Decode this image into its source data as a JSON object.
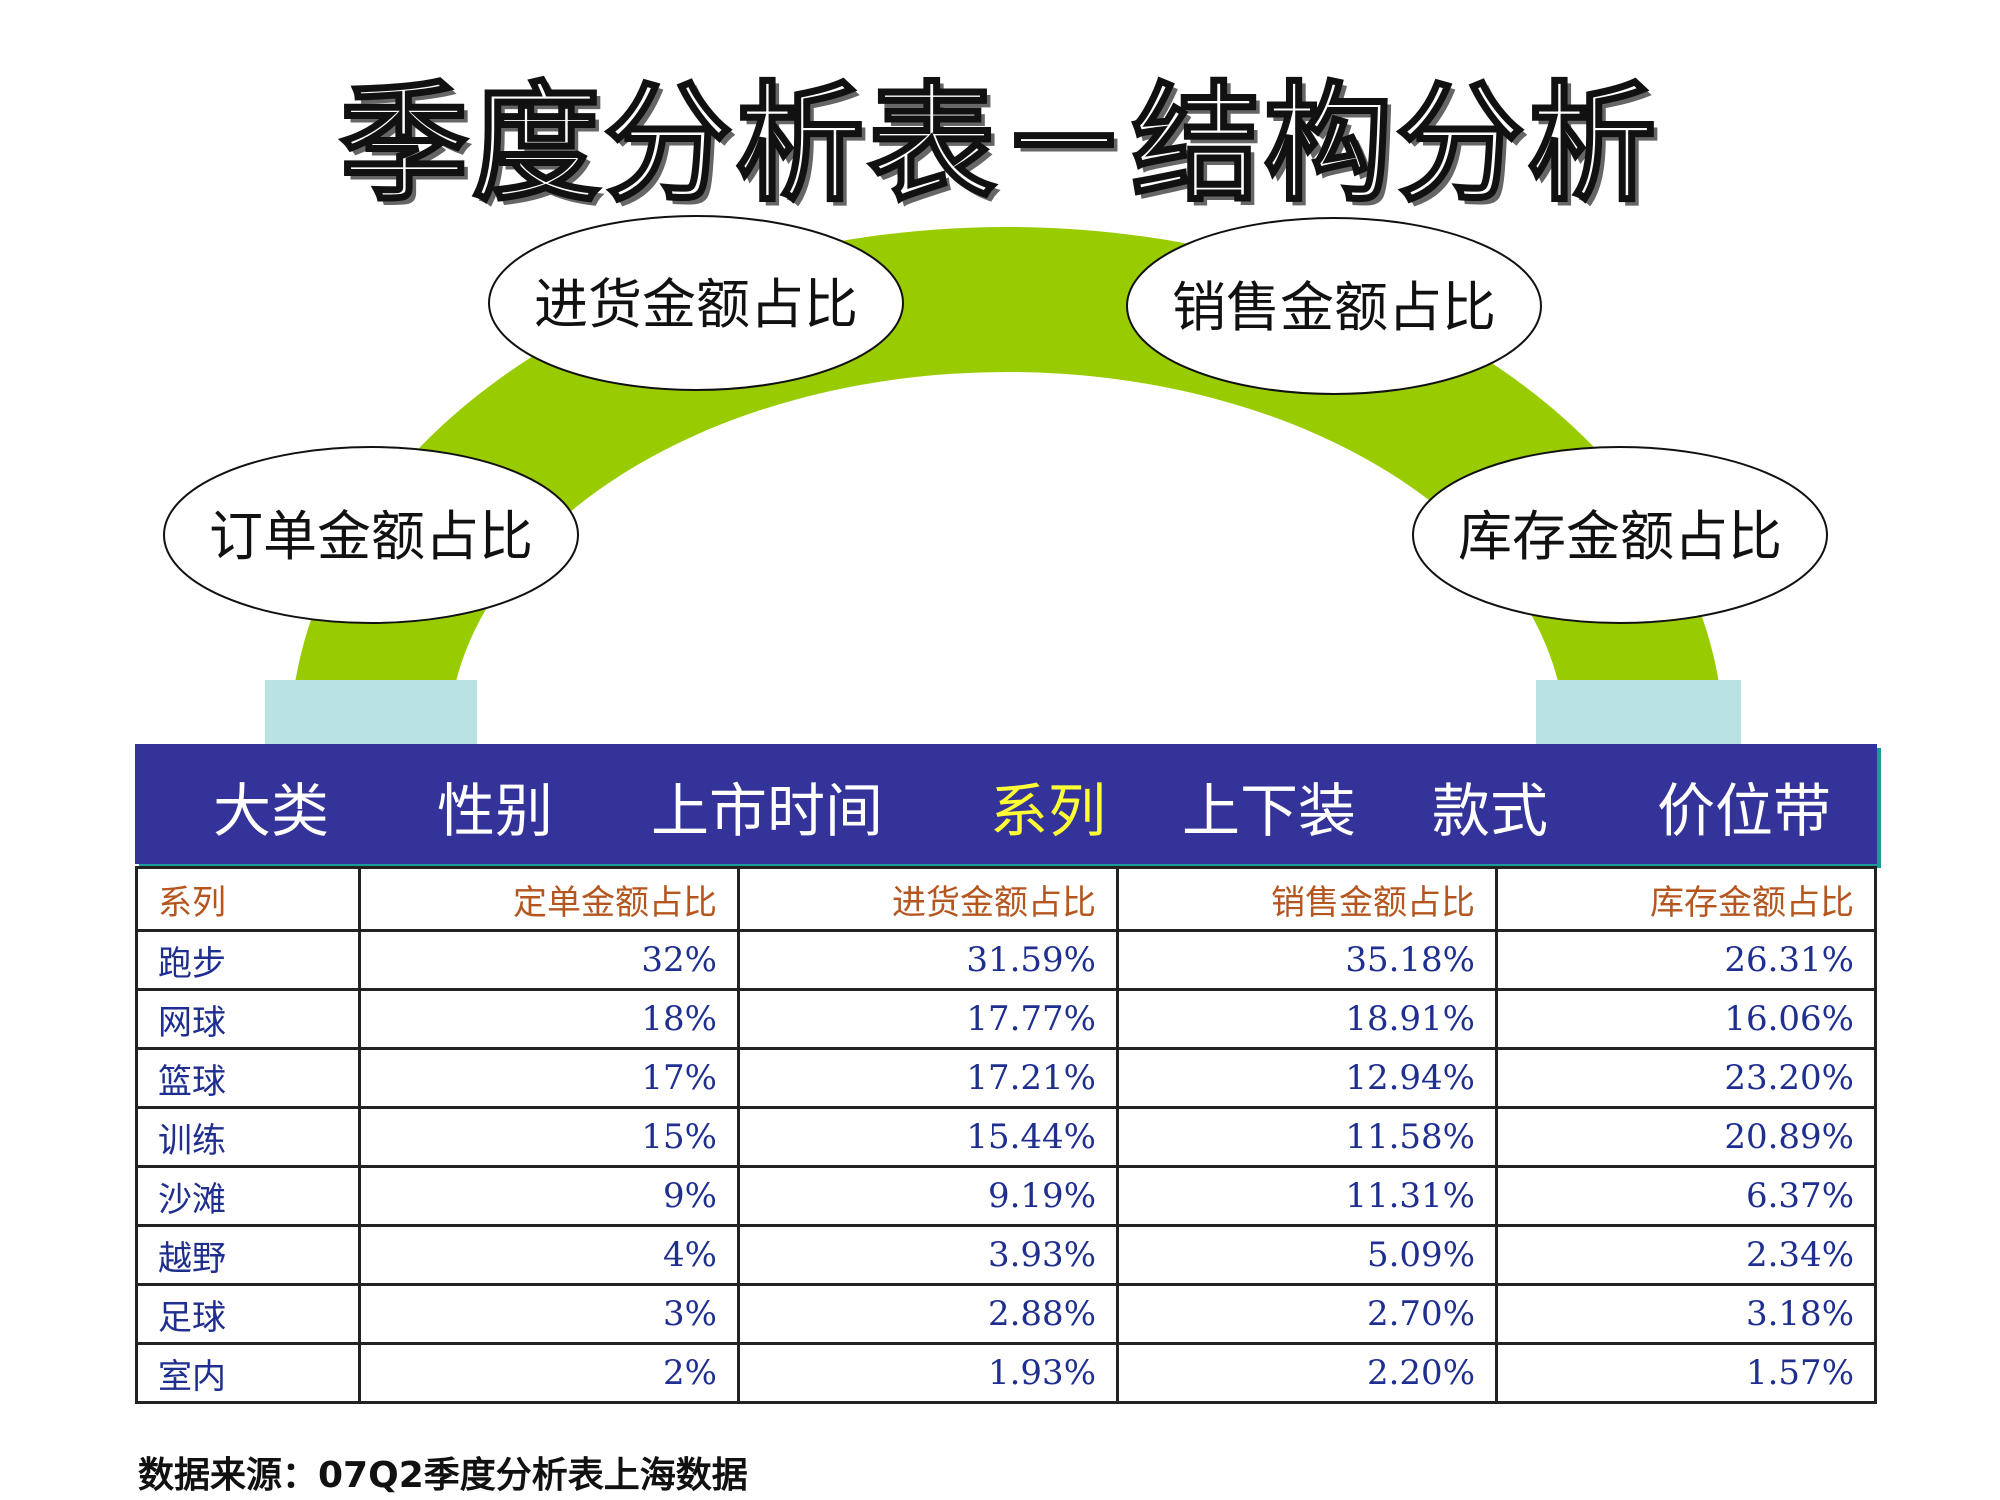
{
  "title": "季度分析表－结构分析",
  "diagram": {
    "labels": [
      "订单金额占比",
      "进货金额占比",
      "销售金额占比",
      "库存金额占比"
    ]
  },
  "colors": {
    "arch": "#99cc00",
    "pillar": "#b9e3e3",
    "nav": "#333399",
    "nav_active": "#ffff33",
    "header_text": "#b5561f",
    "cell_text": "#1f2f8f"
  },
  "nav": {
    "items": [
      "大类",
      "性别",
      "上市时间",
      "系列",
      "上下装",
      "款式",
      "价位带"
    ],
    "active": "系列"
  },
  "table": {
    "headers": [
      "系列",
      "定单金额占比",
      "进货金额占比",
      "销售金额占比",
      "库存金额占比"
    ],
    "rows": [
      [
        "跑步",
        "32%",
        "31.59%",
        "35.18%",
        "26.31%"
      ],
      [
        "网球",
        "18%",
        "17.77%",
        "18.91%",
        "16.06%"
      ],
      [
        "篮球",
        "17%",
        "17.21%",
        "12.94%",
        "23.20%"
      ],
      [
        "训练",
        "15%",
        "15.44%",
        "11.58%",
        "20.89%"
      ],
      [
        "沙滩",
        "9%",
        "9.19%",
        "11.31%",
        "6.37%"
      ],
      [
        "越野",
        "4%",
        "3.93%",
        "5.09%",
        "2.34%"
      ],
      [
        "足球",
        "3%",
        "2.88%",
        "2.70%",
        "3.18%"
      ],
      [
        "室内",
        "2%",
        "1.93%",
        "2.20%",
        "1.57%"
      ]
    ]
  },
  "source": "数据来源：07Q2季度分析表上海数据"
}
